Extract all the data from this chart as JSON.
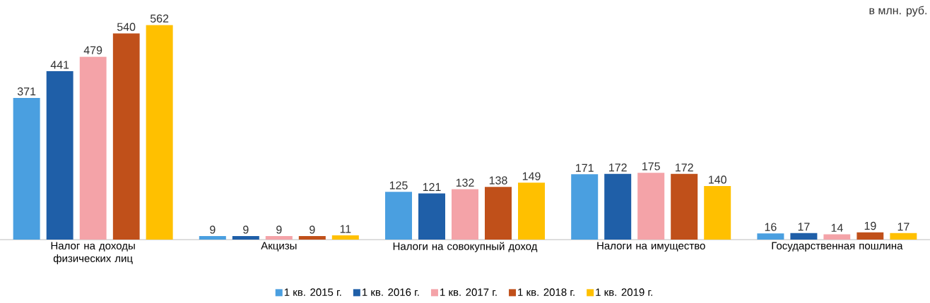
{
  "chart_data": {
    "type": "bar",
    "categories": [
      "Налог на доходы физических лиц",
      "Акцизы",
      "Налоги на совокупный доход",
      "Налоги на имущество",
      "Государственная пошлина"
    ],
    "series": [
      {
        "name": "1 кв. 2015 г.",
        "color": "#4a9fe0",
        "values": [
          371,
          9,
          125,
          171,
          16
        ]
      },
      {
        "name": "1 кв. 2016 г.",
        "color": "#1f5fa8",
        "values": [
          441,
          9,
          121,
          172,
          17
        ]
      },
      {
        "name": "1 кв. 2017 г.",
        "color": "#f4a3a8",
        "values": [
          479,
          9,
          132,
          175,
          14
        ]
      },
      {
        "name": "1 кв. 2018 г.",
        "color": "#c0501a",
        "values": [
          540,
          9,
          138,
          172,
          19
        ]
      },
      {
        "name": "1 кв. 2019 г.",
        "color": "#ffc000",
        "values": [
          562,
          11,
          149,
          140,
          17
        ]
      }
    ],
    "annotations": [
      "в млн. руб."
    ],
    "data_labels": true,
    "legend": "bottom"
  }
}
